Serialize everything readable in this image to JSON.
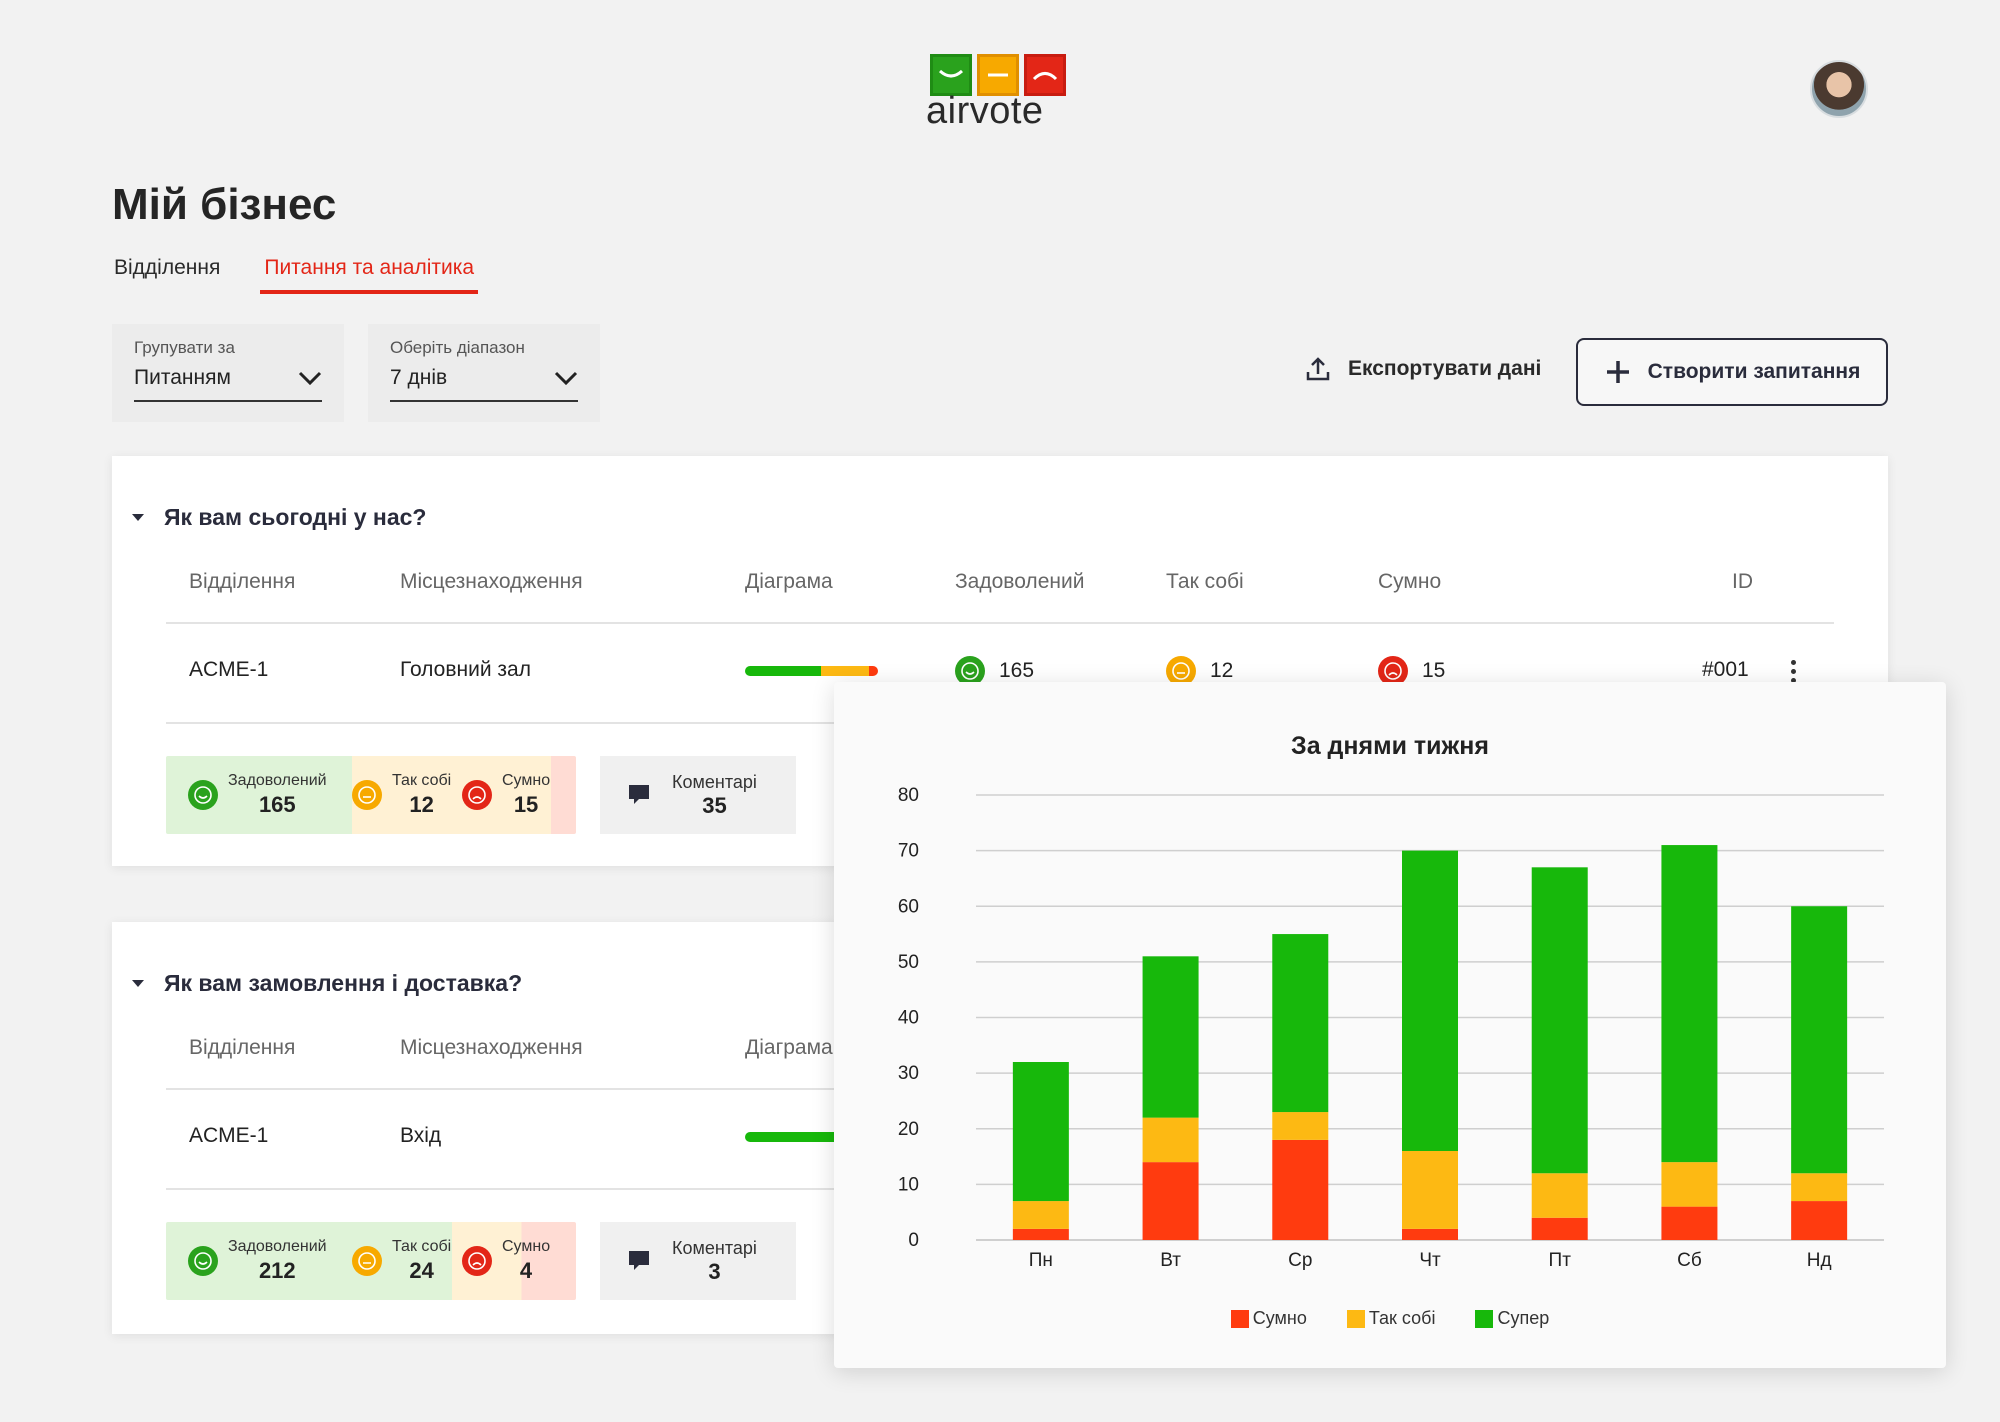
{
  "header": {
    "logo_text": "airvote",
    "avatar_alt": "user avatar"
  },
  "page_title": "Мій бізнес",
  "tabs": [
    {
      "label": "Відділення"
    },
    {
      "label": "Питання та аналітика"
    }
  ],
  "filters": {
    "group_by": {
      "label": "Групувати за",
      "value": "Питанням"
    },
    "range": {
      "label": "Оберіть діапазон",
      "value": "7 днів"
    }
  },
  "actions": {
    "export_label": "Експортувати дані",
    "create_label": "Створити запитання"
  },
  "columns": {
    "branch": "Відділення",
    "location": "Місцезнаходження",
    "diagram": "Діаграма",
    "satisfied": "Задоволений",
    "soso": "Так собі",
    "sad": "Сумно",
    "id": "ID"
  },
  "questions": [
    {
      "title": "Як вам сьогодні у нас?",
      "row": {
        "branch": "ACME-1",
        "location": "Головний зал",
        "satisfied": "165",
        "soso": "12",
        "sad": "15",
        "id": "#001"
      },
      "summary": {
        "satisfied_label": "Задоволений",
        "satisfied": "165",
        "soso_label": "Так собі",
        "soso": "12",
        "sad_label": "Сумно",
        "sad": "15",
        "comments_label": "Коментарі",
        "comments": "35"
      }
    },
    {
      "title": "Як вам замовлення і доставка?",
      "row": {
        "branch": "ACME-1",
        "location": "Вхід"
      },
      "summary": {
        "satisfied_label": "Задоволений",
        "satisfied": "212",
        "soso_label": "Так собі",
        "soso": "24",
        "sad_label": "Сумно",
        "sad": "4",
        "comments_label": "Коментарі",
        "comments": "3"
      }
    }
  ],
  "colors": {
    "green": "#17b80b",
    "yellow": "#fdb913",
    "red": "#ff3b0f",
    "accent": "#e32617",
    "dark": "#2a2c3c"
  },
  "chart_data": {
    "type": "bar",
    "stacked": true,
    "title": "За днями тижня",
    "categories": [
      "Пн",
      "Вт",
      "Ср",
      "Чт",
      "Пт",
      "Сб",
      "Нд"
    ],
    "series": [
      {
        "name": "Сумно",
        "color": "#ff3b0f",
        "values": [
          2,
          14,
          18,
          2,
          4,
          6,
          7
        ]
      },
      {
        "name": "Так собі",
        "color": "#fdb913",
        "values": [
          5,
          8,
          5,
          14,
          8,
          8,
          5
        ]
      },
      {
        "name": "Супер",
        "color": "#17b80b",
        "values": [
          25,
          29,
          32,
          54,
          55,
          57,
          48
        ]
      }
    ],
    "ylim": [
      0,
      80
    ],
    "yticks": [
      0,
      10,
      20,
      30,
      40,
      50,
      60,
      70,
      80
    ],
    "grid": true,
    "legend_position": "bottom"
  }
}
